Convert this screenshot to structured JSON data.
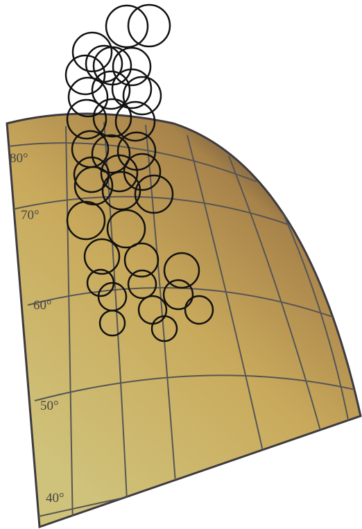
{
  "map": {
    "latitude_labels": [
      "80°",
      "70°",
      "60°",
      "50°",
      "40°"
    ]
  }
}
